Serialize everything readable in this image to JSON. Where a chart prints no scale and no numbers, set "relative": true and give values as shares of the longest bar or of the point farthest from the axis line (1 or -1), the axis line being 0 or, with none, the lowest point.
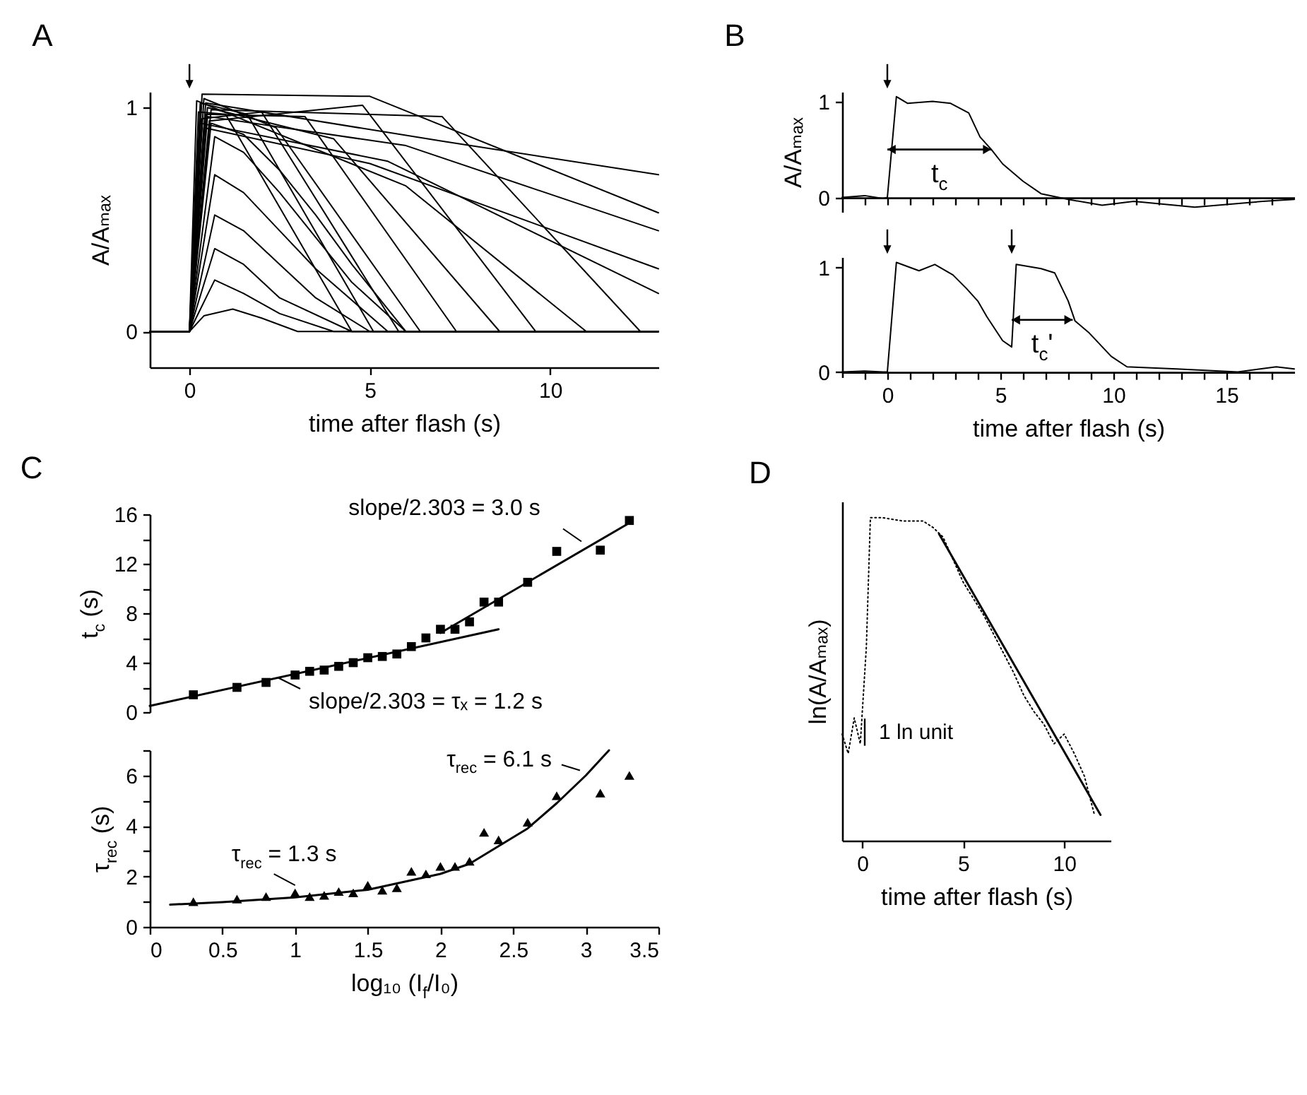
{
  "chart_data": [
    {
      "type": "line",
      "title": "A",
      "xlabel": "time after flash (s)",
      "ylabel": "A/Aₘₐₓ",
      "xlim": [
        -1.1,
        13
      ],
      "xticks": [
        0,
        5,
        10
      ],
      "ylim": [
        -0.16,
        1.07
      ],
      "yticks": [
        0,
        1
      ],
      "series": [
        {
          "color": "#000000",
          "x": [
            -1.1,
            0,
            0.4,
            1.2,
            2,
            3,
            13
          ],
          "values": [
            0,
            0,
            0.07,
            0.1,
            0.06,
            0,
            0
          ]
        },
        {
          "color": "#000000",
          "x": [
            -1.1,
            0,
            0.7,
            1.5,
            2.5,
            4,
            13
          ],
          "values": [
            0,
            0,
            0.23,
            0.17,
            0.08,
            0,
            0
          ]
        },
        {
          "color": "#000000",
          "x": [
            -1.1,
            0,
            0.7,
            1.5,
            2.5,
            4.5,
            13
          ],
          "values": [
            0,
            0,
            0.37,
            0.3,
            0.15,
            0,
            0
          ]
        },
        {
          "color": "#000000",
          "x": [
            -1.1,
            0,
            0.7,
            1.5,
            2.5,
            3.5,
            5,
            13
          ],
          "values": [
            0,
            0,
            0.52,
            0.45,
            0.3,
            0.15,
            0,
            0
          ]
        },
        {
          "color": "#000000",
          "x": [
            -1.1,
            0,
            0.7,
            1.5,
            2.5,
            3.5,
            5.5,
            13
          ],
          "values": [
            0,
            0,
            0.7,
            0.62,
            0.45,
            0.28,
            0,
            0
          ]
        },
        {
          "color": "#000000",
          "x": [
            -1.1,
            0,
            0.7,
            1.5,
            2.5,
            3.5,
            4.5,
            6,
            13
          ],
          "values": [
            0,
            0,
            0.87,
            0.8,
            0.62,
            0.42,
            0.22,
            0,
            0
          ]
        },
        {
          "color": "#000000",
          "x": [
            -1.1,
            0,
            0.6,
            1.5,
            2.5,
            3.5,
            4.5,
            6,
            13
          ],
          "values": [
            0,
            0,
            0.93,
            0.88,
            0.72,
            0.52,
            0.3,
            0,
            0
          ]
        },
        {
          "color": "#000000",
          "x": [
            -1.1,
            0,
            0.25,
            1.0,
            4.5,
            13
          ],
          "values": [
            0,
            0,
            0.98,
            0.97,
            0,
            0
          ]
        },
        {
          "color": "#000000",
          "x": [
            -1.1,
            0,
            0.3,
            1.6,
            5.1,
            13
          ],
          "values": [
            0,
            0,
            1.02,
            0.97,
            0,
            0
          ]
        },
        {
          "color": "#000000",
          "x": [
            -1.1,
            0,
            0.35,
            2.0,
            5.8,
            13
          ],
          "values": [
            0,
            0,
            0.95,
            0.98,
            0,
            0
          ]
        },
        {
          "color": "#000000",
          "x": [
            -1.1,
            0,
            0.4,
            2.4,
            6.4,
            13
          ],
          "values": [
            0,
            0,
            1.04,
            0.91,
            0,
            0
          ]
        },
        {
          "color": "#000000",
          "x": [
            -1.1,
            0,
            0.45,
            3.2,
            7.4,
            13
          ],
          "values": [
            0,
            0,
            0.97,
            0.96,
            0,
            0
          ]
        },
        {
          "color": "#000000",
          "x": [
            -1.1,
            0,
            0.5,
            4.0,
            8.6,
            13
          ],
          "values": [
            0,
            0,
            1.0,
            0.86,
            0,
            0
          ]
        },
        {
          "color": "#000000",
          "x": [
            -1.1,
            0,
            0.55,
            4.8,
            9.6,
            13
          ],
          "values": [
            0,
            0,
            0.94,
            1.01,
            0,
            0
          ]
        },
        {
          "color": "#000000",
          "x": [
            -1.1,
            0,
            0.2,
            6.0,
            11,
            13
          ],
          "values": [
            0,
            0,
            1.03,
            0.65,
            0,
            0
          ]
        },
        {
          "color": "#000000",
          "x": [
            -1.1,
            0,
            0.6,
            7.0,
            12.5,
            13
          ],
          "values": [
            0,
            0,
            0.99,
            0.96,
            0,
            0
          ]
        },
        {
          "color": "#000000",
          "x": [
            -1.1,
            0,
            0.3,
            5.5,
            13
          ],
          "values": [
            0,
            0,
            0.93,
            0.76,
            0.17
          ]
        },
        {
          "color": "#000000",
          "x": [
            -1.1,
            0,
            0.4,
            5.0,
            13
          ],
          "values": [
            0,
            0,
            0.91,
            0.75,
            0.28
          ]
        },
        {
          "color": "#000000",
          "x": [
            -1.1,
            0,
            0.5,
            6.0,
            13
          ],
          "values": [
            0,
            0,
            0.96,
            0.83,
            0.45
          ]
        },
        {
          "color": "#000000",
          "x": [
            -1.1,
            0,
            0.35,
            5.0,
            13
          ],
          "values": [
            0,
            0,
            1.06,
            1.05,
            0.53
          ]
        },
        {
          "color": "#000000",
          "x": [
            -1.1,
            0,
            0.45,
            7.0,
            13
          ],
          "values": [
            0,
            0,
            1.02,
            0.85,
            0.7
          ]
        }
      ]
    },
    {
      "type": "line",
      "title": "B",
      "ylabel": "A/Aₘₐₓ",
      "tick_labels": "y",
      "xlim": [
        -2,
        18
      ],
      "xticks": [
        {
          "value": -1,
          "label": null
        },
        0,
        {
          "value": 1,
          "label": null
        },
        {
          "value": 2,
          "label": null
        },
        {
          "value": 3,
          "label": null
        },
        {
          "value": 4,
          "label": null
        },
        5,
        {
          "value": 6,
          "label": null
        },
        {
          "value": 7,
          "label": null
        },
        {
          "value": 8,
          "label": null
        },
        {
          "value": 9,
          "label": null
        },
        10,
        {
          "value": 11,
          "label": null
        },
        {
          "value": 12,
          "label": null
        },
        {
          "value": 13,
          "label": null
        },
        {
          "value": 14,
          "label": null
        },
        15,
        {
          "value": 16,
          "label": null
        },
        {
          "value": 17,
          "label": null
        }
      ],
      "ylim": [
        -0.15,
        1.1
      ],
      "yticks": [
        0,
        1
      ],
      "annotations": [
        {
          "text": "t$_{c}$",
          "x": 4.6,
          "y": 0.5
        }
      ],
      "series": [
        {
          "color": "#000000",
          "x": [
            -2,
            -1,
            -0.2,
            0,
            0.4,
            0.9,
            2,
            2.8,
            3.6,
            4.1,
            4.6,
            5.1,
            6,
            6.8,
            8,
            9.5,
            10.9,
            13.6,
            16.6,
            18
          ],
          "values": [
            0,
            0.02,
            -0.01,
            0,
            1.05,
            0.98,
            1.0,
            0.98,
            0.88,
            0.63,
            0.5,
            0.35,
            0.17,
            0.04,
            -0.02,
            -0.08,
            -0.04,
            -0.1,
            -0.04,
            -0.02
          ]
        }
      ]
    },
    {
      "type": "line",
      "xlabel": "time after flash (s)",
      "xlim": [
        -2,
        18
      ],
      "xticks": [
        {
          "value": -1,
          "label": null
        },
        0,
        {
          "value": 1,
          "label": null
        },
        {
          "value": 2,
          "label": null
        },
        {
          "value": 3,
          "label": null
        },
        {
          "value": 4,
          "label": null
        },
        5,
        {
          "value": 6,
          "label": null
        },
        {
          "value": 7,
          "label": null
        },
        {
          "value": 8,
          "label": null
        },
        {
          "value": 9,
          "label": null
        },
        10,
        {
          "value": 11,
          "label": null
        },
        {
          "value": 12,
          "label": null
        },
        {
          "value": 13,
          "label": null
        },
        {
          "value": 14,
          "label": null
        },
        15,
        {
          "value": 16,
          "label": null
        },
        {
          "value": 17,
          "label": null
        }
      ],
      "ylim": [
        -0.05,
        1.1
      ],
      "yticks": [
        0,
        1
      ],
      "annotations": [
        {
          "text": "t$_{c}$'",
          "x": 8.2,
          "y": 0.5
        }
      ],
      "series": [
        {
          "color": "#000000",
          "x": [
            -2,
            -1,
            -0.2,
            0,
            0.4,
            1.4,
            2.1,
            2.9,
            3.5,
            4.0,
            4.4,
            5.1,
            5.5,
            5.7,
            6.8,
            7.4,
            8.0,
            8.3,
            8.9,
            9.9,
            10.6,
            12.8,
            15.5,
            17.2,
            18
          ],
          "values": [
            0,
            0.01,
            0,
            0,
            1.05,
            0.97,
            1.03,
            0.93,
            0.8,
            0.68,
            0.53,
            0.3,
            0.24,
            1.03,
            0.99,
            0.95,
            0.68,
            0.49,
            0.38,
            0.15,
            0.05,
            0.03,
            0,
            0.05,
            0.03
          ]
        }
      ]
    },
    {
      "type": "scatter",
      "title": "C",
      "ylabel": "t$_{c}$ (s)",
      "tick_labels": "y",
      "xlim": [
        0,
        3.5
      ],
      "ylim": [
        0,
        16
      ],
      "yticks": [
        0,
        {
          "value": 2,
          "label": null
        },
        4,
        {
          "value": 6,
          "label": null
        },
        8,
        {
          "value": 10,
          "label": null
        },
        12,
        {
          "value": 14,
          "label": null
        },
        16
      ],
      "annotations": [
        {
          "text": "slope/2.303 = 3.0 s",
          "x": 2.97,
          "y": 13.8
        },
        {
          "text": "slope/2.303 = τₓ = 1.2 s",
          "x": 0.88,
          "y": 2.8
        }
      ],
      "series": [
        {
          "color": "#000000",
          "marker": "square",
          "x": [
            0.3,
            0.6,
            0.8,
            1,
            1.1,
            1.2,
            1.3,
            1.4,
            1.5,
            1.6,
            1.7,
            1.8,
            1.9
          ],
          "values": [
            1.4,
            2.0,
            2.4,
            3.0,
            3.3,
            3.4,
            3.7,
            4.0,
            4.4,
            4.5,
            4.7,
            5.3,
            6.0
          ]
        },
        {
          "color": "#000000",
          "marker": "square",
          "x": [
            2.0,
            2.1,
            2.2,
            2.3,
            2.4,
            2.6,
            2.8,
            3.1,
            3.3
          ],
          "values": [
            6.7,
            6.7,
            7.3,
            8.9,
            8.9,
            10.5,
            13.0,
            13.1,
            15.5
          ]
        },
        {
          "type": "line",
          "color": "#000000",
          "x": [
            0,
            2.4
          ],
          "values": [
            0.5,
            6.7
          ]
        },
        {
          "type": "line",
          "color": "#000000",
          "x": [
            2.0,
            3.3
          ],
          "values": [
            6.4,
            15.3
          ]
        }
      ]
    },
    {
      "type": "scatter",
      "xlabel": "log₁₀ (I$_{f}$/I₀)",
      "ylabel": "τ$_{rec}$ (s)",
      "xlim": [
        0,
        3.5
      ],
      "xticks": [
        0,
        0.5,
        1,
        1.5,
        2,
        2.5,
        3,
        3.5
      ],
      "ylim": [
        0,
        7
      ],
      "yticks": [
        0,
        {
          "value": 1,
          "label": null
        },
        2,
        {
          "value": 3,
          "label": null
        },
        4,
        {
          "value": 5,
          "label": null
        },
        6,
        {
          "value": 7,
          "label": null
        }
      ],
      "annotations": [
        {
          "text": "τ$_{rec}$ = 6.1 s",
          "x": 2.96,
          "y": 6.2
        },
        {
          "text": "τ$_{rec}$ = 1.3 s",
          "x": 1.0,
          "y": 1.65
        }
      ],
      "series": [
        {
          "color": "#000000",
          "marker": "triangle",
          "x": [
            0.3,
            0.6,
            0.8,
            1,
            1.1,
            1.2,
            1.3,
            1.4,
            1.5,
            1.6,
            1.7,
            1.8,
            1.9,
            2,
            2.1,
            2.2,
            2.3,
            2.4,
            2.6,
            2.8,
            3.1,
            3.3
          ],
          "values": [
            1.0,
            1.1,
            1.2,
            1.35,
            1.2,
            1.25,
            1.4,
            1.35,
            1.65,
            1.45,
            1.55,
            2.2,
            2.1,
            2.4,
            2.4,
            2.6,
            3.75,
            3.45,
            4.15,
            5.2,
            5.3,
            6.0
          ]
        },
        {
          "type": "line",
          "color": "#000000",
          "x": [
            0.14,
            0.5,
            1,
            1.5,
            2,
            2.2,
            2.4,
            2.6,
            2.8,
            3,
            3.16
          ],
          "values": [
            0.88,
            0.98,
            1.17,
            1.47,
            2.1,
            2.5,
            3.2,
            3.9,
            4.9,
            6.0,
            7.0
          ]
        }
      ]
    },
    {
      "type": "line",
      "title": "D",
      "xlabel": "time after flash (s)",
      "ylabel": "ln(A/Aₘₐₓ)",
      "relative": true,
      "xlim": [
        -1,
        12.3
      ],
      "xticks": [
        0,
        5,
        10
      ],
      "annotations": [
        "1 ln unit"
      ],
      "series": [
        {
          "color": "#000000",
          "line_style": "dotted",
          "x": [
            -1,
            -0.7,
            -0.4,
            -0.1,
            0.2,
            0.4,
            1,
            2,
            3,
            3.5,
            4,
            5,
            6,
            7,
            7.5,
            8,
            8.5,
            9,
            9.5,
            10,
            10.5,
            11,
            11.5
          ],
          "values": [
            0.33,
            0.27,
            0.38,
            0.3,
            0.6,
            1,
            1,
            0.99,
            0.99,
            0.97,
            0.94,
            0.8,
            0.7,
            0.58,
            0.52,
            0.45,
            0.4,
            0.36,
            0.3,
            0.33,
            0.27,
            0.2,
            0.08
          ]
        },
        {
          "color": "#000000",
          "x": [
            3.8,
            11.8
          ],
          "values": [
            0.95,
            0.08
          ]
        }
      ]
    }
  ]
}
